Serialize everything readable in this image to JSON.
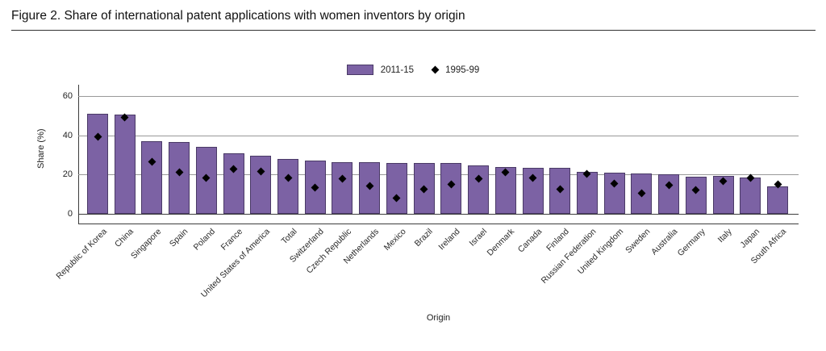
{
  "figure": {
    "title": "Figure 2. Share of international patent applications with women inventors by origin"
  },
  "legend": {
    "bars_label": "2011-15",
    "dots_label": "1995-99"
  },
  "axes": {
    "y_label": "Share (%)",
    "x_label": "Origin",
    "y_ticks": [
      0,
      20,
      40,
      60
    ]
  },
  "colors": {
    "bar_fill": "#7C62A4",
    "bar_border": "#4A3A66",
    "dot": "#000000",
    "gridline": "#999999",
    "axis": "#3d3d3d"
  },
  "chart_data": {
    "type": "bar",
    "title": "Figure 2. Share of international patent applications with women inventors by origin",
    "xlabel": "Origin",
    "ylabel": "Share (%)",
    "ylim": [
      0,
      60
    ],
    "grid": true,
    "legend_position": "top-center",
    "categories": [
      "Republic of Korea",
      "China",
      "Singapore",
      "Spain",
      "Poland",
      "France",
      "United States of America",
      "Total",
      "Switzerland",
      "Czech Republic",
      "Netherlands",
      "Mexico",
      "Brazil",
      "Ireland",
      "Israel",
      "Denmark",
      "Canada",
      "Finland",
      "Russian Federation",
      "United Kingdom",
      "Sweden",
      "Australia",
      "Germany",
      "Italy",
      "Japan",
      "South Africa"
    ],
    "series": [
      {
        "name": "2011-15",
        "type": "bar",
        "values": [
          51,
          50.5,
          37,
          36.5,
          34,
          31,
          29.5,
          28,
          27,
          26.5,
          26.5,
          26,
          26,
          26,
          24.5,
          24,
          23.5,
          23.5,
          21.5,
          21,
          20.5,
          20,
          19,
          19.5,
          18.5,
          14
        ]
      },
      {
        "name": "1995-99",
        "type": "scatter",
        "marker": "diamond",
        "values": [
          39.5,
          49,
          26.5,
          21,
          18.5,
          23,
          21.5,
          18.5,
          13.5,
          18,
          14,
          8,
          12.5,
          15,
          18,
          21,
          18.5,
          12.5,
          20.5,
          15.5,
          10.5,
          14.5,
          12,
          16.5,
          18.5,
          15
        ]
      }
    ]
  }
}
